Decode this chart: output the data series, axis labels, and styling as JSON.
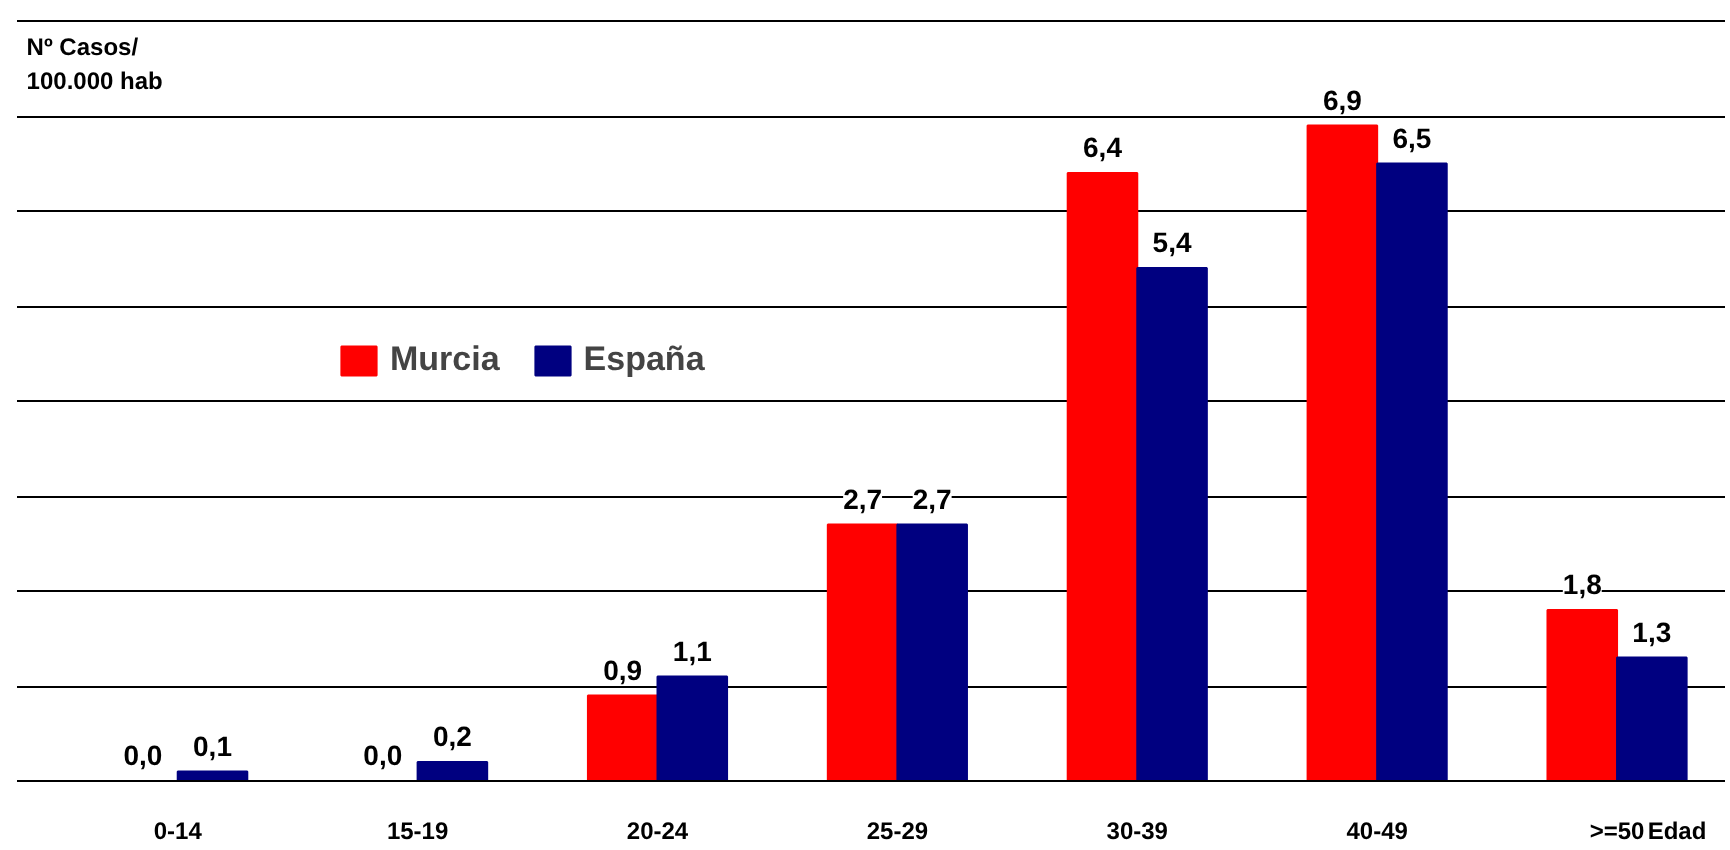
{
  "chart_data": {
    "type": "bar",
    "categories": [
      "0-14",
      "15-19",
      "20-24",
      "25-29",
      "30-39",
      "40-49",
      ">=50"
    ],
    "series": [
      {
        "name": "Murcia",
        "color": "#ff0000",
        "values": [
          0.0,
          0.0,
          0.9,
          2.7,
          6.4,
          6.9,
          1.8
        ],
        "value_labels": [
          "0,0",
          "0,0",
          "0,9",
          "2,7",
          "6,4",
          "6,9",
          "1,8"
        ]
      },
      {
        "name": "España",
        "color": "#000080",
        "values": [
          0.1,
          0.2,
          1.1,
          2.7,
          5.4,
          6.5,
          1.3
        ],
        "value_labels": [
          "0,1",
          "0,2",
          "1,1",
          "2,7",
          "5,4",
          "6,5",
          "1,3"
        ]
      }
    ],
    "ylabel": "Nº Casos/\n100.000 hab",
    "xlabel": "Edad",
    "ylim": [
      0,
      8
    ],
    "yticks": [
      {
        "value": 0,
        "label": null
      },
      {
        "value": 1,
        "label": null
      },
      {
        "value": 2,
        "label": null
      },
      {
        "value": 3,
        "label": null
      },
      {
        "value": 4,
        "label": null
      },
      {
        "value": 5,
        "label": null
      },
      {
        "value": 6,
        "label": null
      },
      {
        "value": 7,
        "label": null
      },
      {
        "value": 8,
        "label": null
      }
    ],
    "grid": "y",
    "legend": "left",
    "tick_labels": "x"
  }
}
